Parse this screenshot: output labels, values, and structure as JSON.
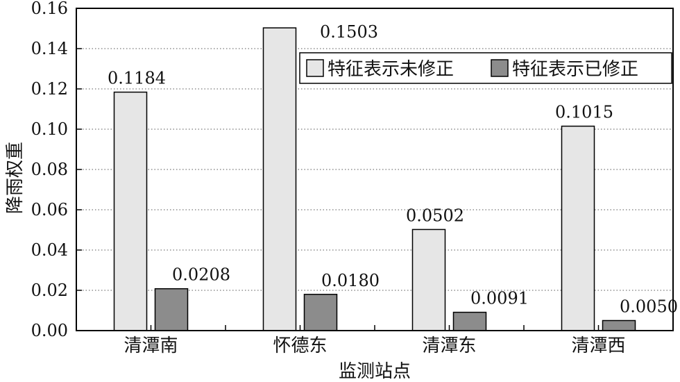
{
  "chart_data": {
    "type": "bar",
    "categories": [
      "清潭南",
      "怀德东",
      "清潭东",
      "清潭西"
    ],
    "series": [
      {
        "name": "特征表示未修正",
        "values": [
          0.1184,
          0.1503,
          0.0502,
          0.1015
        ],
        "labels": [
          "0.1184",
          "0.1503",
          "0.0502",
          "0.1015"
        ],
        "color": "#e6e6e6"
      },
      {
        "name": "特征表示已修正",
        "values": [
          0.0208,
          0.018,
          0.0091,
          0.005
        ],
        "labels": [
          "0.0208",
          "0.0180",
          "0.0091",
          "0.0050"
        ],
        "color": "#8c8c8c"
      }
    ],
    "xlabel": "监测站点",
    "ylabel": "降雨权重",
    "ylim": [
      0,
      0.16
    ],
    "yticks": [
      "0.00",
      "0.02",
      "0.04",
      "0.06",
      "0.08",
      "0.10",
      "0.12",
      "0.14",
      "0.16"
    ],
    "grid": true,
    "legend_position": "top-right"
  }
}
